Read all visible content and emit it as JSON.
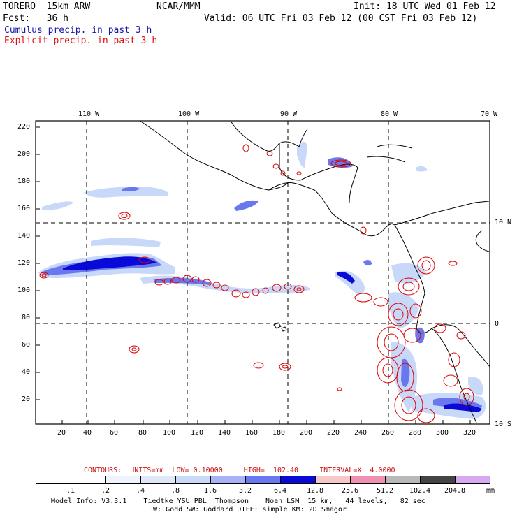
{
  "header": {
    "model_name": "TORERO  15km ARW",
    "org": "NCAR/MMM",
    "init": "Init: 18 UTC Wed 01 Feb 12",
    "fcst": "Fcst:   36 h",
    "valid": "Valid: 06 UTC Fri 03 Feb 12 (00 CST Fri 03 Feb 12)",
    "field_blue": "Cumulus precip. in past 3 h",
    "field_red": "Explicit precip. in past 3 h"
  },
  "map": {
    "lon_labels": [
      "110 W",
      "100 W",
      "90 W",
      "80 W",
      "70 W"
    ],
    "lat_labels": [
      "10 N",
      "0",
      "10 S"
    ],
    "y_ticks": [
      "220",
      "200",
      "180",
      "160",
      "140",
      "120",
      "100",
      "80",
      "60",
      "40",
      "20"
    ],
    "x_ticks": [
      "20",
      "40",
      "60",
      "80",
      "100",
      "120",
      "140",
      "160",
      "180",
      "200",
      "220",
      "240",
      "260",
      "280",
      "300",
      "320"
    ],
    "colors": {
      "cumulus_light": "#c8d8f8",
      "cumulus_mid": "#6a78f0",
      "cumulus_dark": "#0a0ad8",
      "explicit_contour": "#e00000",
      "coast": "#000000"
    }
  },
  "contours_line": {
    "text": "CONTOURS:  UNITS=mm  LOW= 0.10000     HIGH=  102.40     INTERVAL=X  4.0000"
  },
  "colorbar": {
    "labels": [
      ".1",
      ".2",
      ".4",
      ".8",
      "1.6",
      "3.2",
      "6.4",
      "12.8",
      "25.6",
      "51.2",
      "102.4",
      "204.8"
    ],
    "unit": "mm",
    "colors": [
      "#ffffff",
      "#ffffff",
      "#eef3fd",
      "#dfe8fb",
      "#c9d9f8",
      "#a7b3f6",
      "#6a78f0",
      "#0a0ad8",
      "#f6c8c8",
      "#f090b0",
      "#b8b8b8",
      "#444444",
      "#d8a8f0"
    ]
  },
  "footer": {
    "line1": "Model Info: V3.3.1    Tiedtke YSU PBL  Thompson    Noah LSM  15 km,   44 levels,   82 sec",
    "line2": "LW: Godd SW: Goddard DIFF: simple KM: 2D Smagor"
  }
}
